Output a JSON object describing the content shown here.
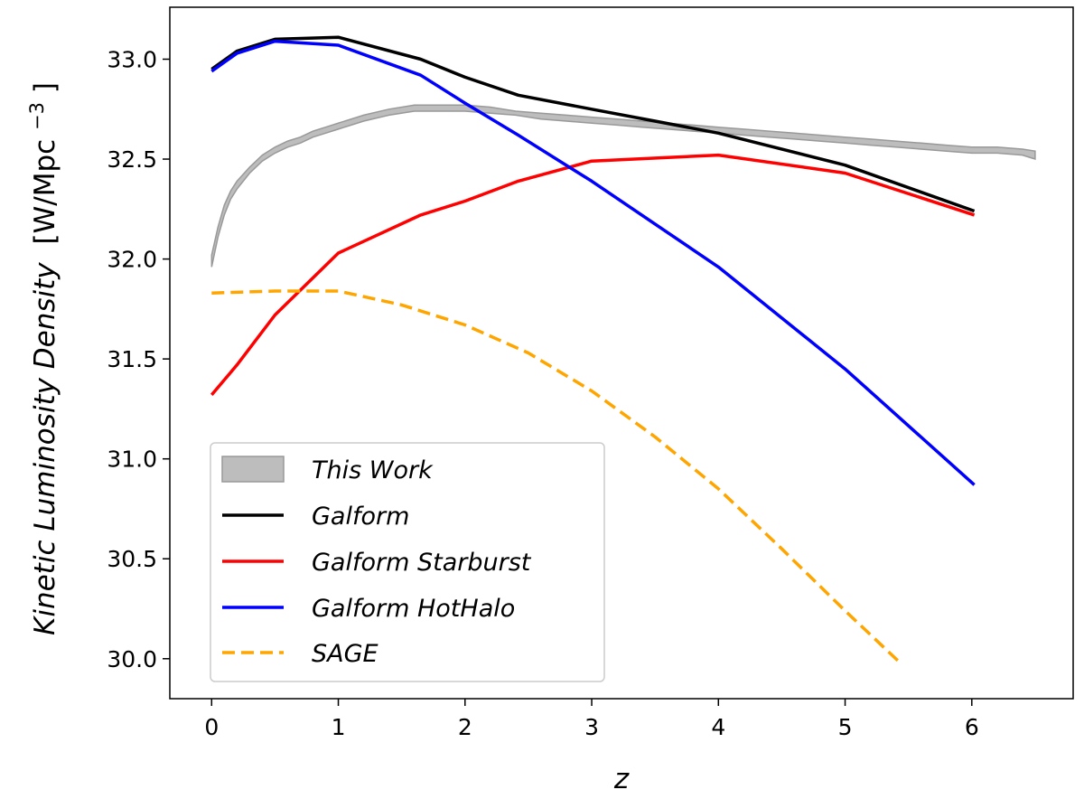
{
  "chart_data": {
    "type": "line",
    "xlabel": "z",
    "ylabel_text": "Kinetic Luminosity Density",
    "ylabel_unit": "[W/Mpc",
    "ylabel_sup": "−3",
    "ylabel_close": "]",
    "xlim": [
      -0.33,
      6.8
    ],
    "ylim": [
      29.8,
      33.26
    ],
    "xticks": [
      0,
      1,
      2,
      3,
      4,
      5,
      6
    ],
    "xtick_labels": [
      "0",
      "1",
      "2",
      "3",
      "4",
      "5",
      "6"
    ],
    "yticks": [
      30.0,
      30.5,
      31.0,
      31.5,
      32.0,
      32.5,
      33.0
    ],
    "ytick_labels": [
      "30.0",
      "30.5",
      "31.0",
      "31.5",
      "32.0",
      "32.5",
      "33.0"
    ],
    "legend_position": "lower-left",
    "band": {
      "name": "This Work",
      "color": "#bdbdbd",
      "edge_color": "#999999",
      "x": [
        0.0,
        0.05,
        0.1,
        0.15,
        0.2,
        0.3,
        0.4,
        0.5,
        0.6,
        0.7,
        0.8,
        0.9,
        1.0,
        1.2,
        1.4,
        1.6,
        1.8,
        2.0,
        2.2,
        2.4,
        2.6,
        2.8,
        3.0,
        3.2,
        3.4,
        3.6,
        3.8,
        4.0,
        4.2,
        4.4,
        4.6,
        4.8,
        5.0,
        5.2,
        5.4,
        5.6,
        5.8,
        6.0,
        6.2,
        6.4,
        6.5
      ],
      "upper": [
        32.02,
        32.16,
        32.27,
        32.34,
        32.39,
        32.46,
        32.52,
        32.56,
        32.59,
        32.61,
        32.64,
        32.66,
        32.68,
        32.72,
        32.75,
        32.77,
        32.77,
        32.77,
        32.76,
        32.74,
        32.73,
        32.72,
        32.71,
        32.7,
        32.69,
        32.68,
        32.67,
        32.66,
        32.65,
        32.64,
        32.63,
        32.62,
        32.61,
        32.6,
        32.59,
        32.58,
        32.57,
        32.56,
        32.56,
        32.55,
        32.54
      ],
      "lower": [
        31.96,
        32.11,
        32.22,
        32.3,
        32.35,
        32.43,
        32.49,
        32.53,
        32.56,
        32.58,
        32.61,
        32.63,
        32.65,
        32.69,
        32.72,
        32.74,
        32.74,
        32.74,
        32.73,
        32.72,
        32.7,
        32.69,
        32.68,
        32.67,
        32.66,
        32.65,
        32.64,
        32.63,
        32.62,
        32.61,
        32.6,
        32.59,
        32.58,
        32.57,
        32.56,
        32.55,
        32.54,
        32.53,
        32.53,
        32.52,
        32.5
      ]
    },
    "series": [
      {
        "name": "Galform",
        "color": "#000000",
        "dash": "solid",
        "x": [
          0.0,
          0.2,
          0.5,
          1.0,
          1.65,
          2.0,
          2.42,
          3.0,
          3.5,
          4.0,
          5.0,
          6.02
        ],
        "y": [
          32.95,
          33.04,
          33.1,
          33.11,
          33.0,
          32.91,
          32.82,
          32.75,
          32.69,
          32.63,
          32.47,
          32.24
        ]
      },
      {
        "name": "Galform Starburst",
        "color": "#ff0000",
        "dash": "solid",
        "x": [
          0.0,
          0.2,
          0.5,
          1.0,
          1.65,
          2.0,
          2.42,
          3.0,
          4.0,
          5.0,
          6.02
        ],
        "y": [
          31.32,
          31.47,
          31.72,
          32.03,
          32.22,
          32.29,
          32.39,
          32.49,
          32.52,
          32.43,
          32.22
        ]
      },
      {
        "name": "Galform HotHalo",
        "color": "#0000ff",
        "dash": "solid",
        "x": [
          0.0,
          0.2,
          0.5,
          1.0,
          1.65,
          2.0,
          2.42,
          3.0,
          4.0,
          5.0,
          6.02
        ],
        "y": [
          32.94,
          33.03,
          33.09,
          33.07,
          32.92,
          32.78,
          32.62,
          32.39,
          31.96,
          31.45,
          30.87
        ]
      },
      {
        "name": "SAGE",
        "color": "#ffa500",
        "dash": "dashed",
        "x": [
          0.0,
          0.5,
          1.0,
          1.5,
          2.0,
          2.5,
          3.0,
          3.5,
          4.0,
          4.5,
          5.0,
          5.45
        ],
        "y": [
          31.83,
          31.84,
          31.84,
          31.77,
          31.67,
          31.53,
          31.34,
          31.11,
          30.85,
          30.55,
          30.24,
          29.97
        ]
      }
    ]
  }
}
